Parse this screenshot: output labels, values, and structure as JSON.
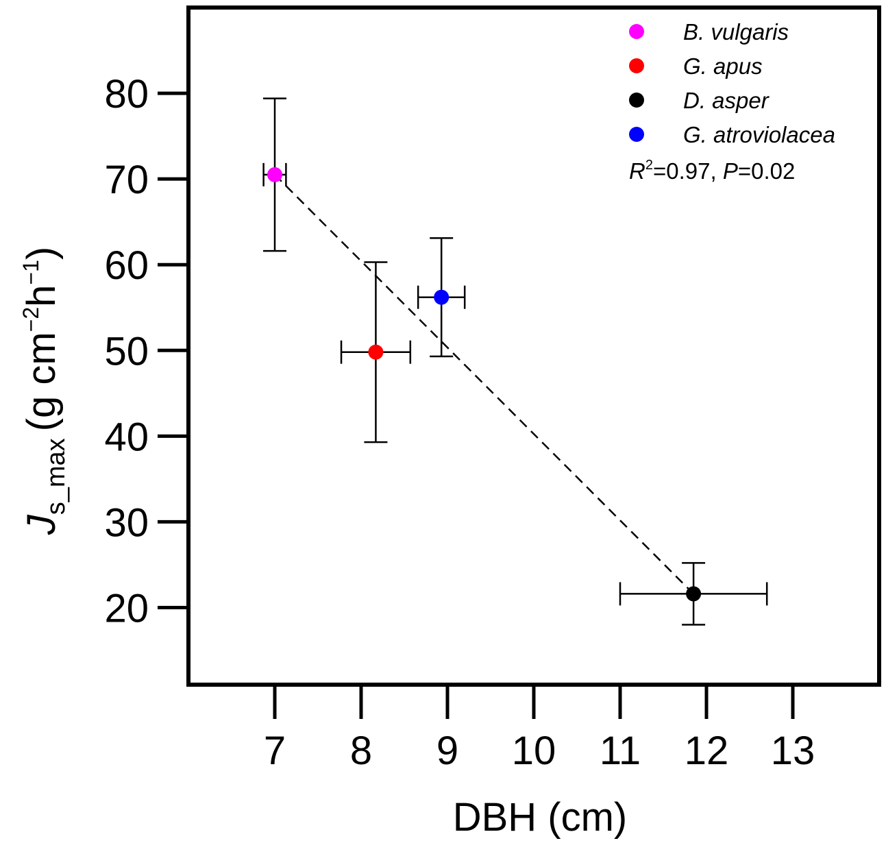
{
  "chart_data": {
    "type": "scatter",
    "xlabel": "DBH (cm)",
    "ylabel": {
      "symbol": "J",
      "subscript": "s_max",
      "units_prefix": "(g cm",
      "exp1": "−2",
      "units_mid": "h",
      "exp2": "−1",
      "units_suffix": ")"
    },
    "xlim": [
      6.0,
      14.0
    ],
    "ylim": [
      11.0,
      90.0
    ],
    "xticks": [
      7,
      8,
      9,
      10,
      11,
      12,
      13
    ],
    "xtick_labels": [
      "7",
      "8",
      "9",
      "10",
      "11",
      "12",
      "13"
    ],
    "yticks": [
      20,
      30,
      40,
      50,
      60,
      70,
      80
    ],
    "ytick_labels": [
      "20",
      "30",
      "40",
      "50",
      "60",
      "70",
      "80"
    ],
    "series": [
      {
        "name": "B. vulgaris",
        "x": 7.0,
        "y": 70.5,
        "xerr": 0.13,
        "yerr": 8.9,
        "color": "#ff00ff"
      },
      {
        "name": "G. apus",
        "x": 8.17,
        "y": 49.8,
        "xerr": 0.4,
        "yerr": 10.5,
        "color": "#ff0000"
      },
      {
        "name": "D. asper",
        "x": 11.85,
        "y": 21.6,
        "xerr": 0.85,
        "yerr": 3.6,
        "color": "#000000"
      },
      {
        "name": "G. atroviolacea",
        "x": 8.93,
        "y": 56.2,
        "xerr": 0.27,
        "yerr": 6.9,
        "color": "#0000ff"
      }
    ],
    "regression": {
      "x": [
        7.0,
        11.85
      ],
      "y": [
        70.5,
        21.6
      ],
      "style": "dashed"
    },
    "stats": {
      "r_label": "R",
      "r_exp": "2",
      "r_value": "=0.97, ",
      "p_label": "P",
      "p_value": "=0.02"
    },
    "legend_position": "top-right",
    "grid": false
  }
}
